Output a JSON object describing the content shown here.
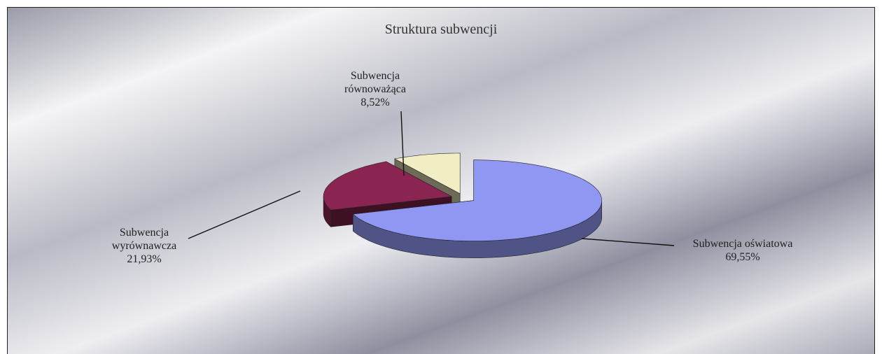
{
  "chart_data": {
    "type": "pie",
    "title": "Struktura subwencji",
    "categories": [
      "Subwencja oświatowa",
      "Subwencja wyrównawcza",
      "Subwencja równoważąca"
    ],
    "values": [
      69.55,
      21.93,
      8.52
    ],
    "value_labels": [
      "69,55%",
      "21,93%",
      "8,52%"
    ],
    "colors": [
      "#9097f2",
      "#8a2450",
      "#f2eec4"
    ]
  }
}
